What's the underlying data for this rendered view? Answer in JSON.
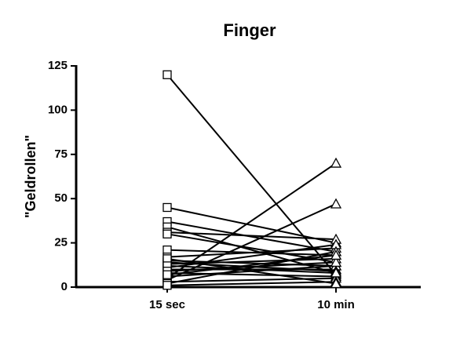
{
  "chart_data": {
    "type": "line",
    "title": "Finger",
    "y_label": "\"Geldrollen\"",
    "categories": [
      "15 sec",
      "10 min"
    ],
    "color": "#000000",
    "ylim": [
      0,
      125
    ],
    "yticks": [
      0,
      25,
      50,
      75,
      100,
      125
    ],
    "grid": false,
    "series": [
      {
        "values": [
          120,
          7
        ]
      },
      {
        "values": [
          45,
          25
        ]
      },
      {
        "values": [
          37,
          20
        ]
      },
      {
        "values": [
          34,
          8
        ]
      },
      {
        "values": [
          31,
          27
        ]
      },
      {
        "values": [
          30,
          14
        ]
      },
      {
        "values": [
          21,
          18
        ]
      },
      {
        "values": [
          17,
          22
        ]
      },
      {
        "values": [
          15,
          12
        ]
      },
      {
        "values": [
          13,
          16
        ]
      },
      {
        "values": [
          11,
          24
        ]
      },
      {
        "values": [
          10,
          10
        ]
      },
      {
        "values": [
          8,
          6
        ]
      },
      {
        "values": [
          6,
          12
        ]
      },
      {
        "values": [
          5,
          70
        ]
      },
      {
        "values": [
          4,
          47
        ]
      },
      {
        "values": [
          3,
          5
        ]
      },
      {
        "values": [
          2,
          20
        ]
      },
      {
        "values": [
          1,
          3
        ]
      },
      {
        "values": [
          14,
          9
        ]
      },
      {
        "values": [
          16,
          2
        ]
      },
      {
        "values": [
          12,
          8
        ]
      },
      {
        "values": [
          9,
          14
        ]
      },
      {
        "values": [
          7,
          18
        ]
      }
    ]
  }
}
